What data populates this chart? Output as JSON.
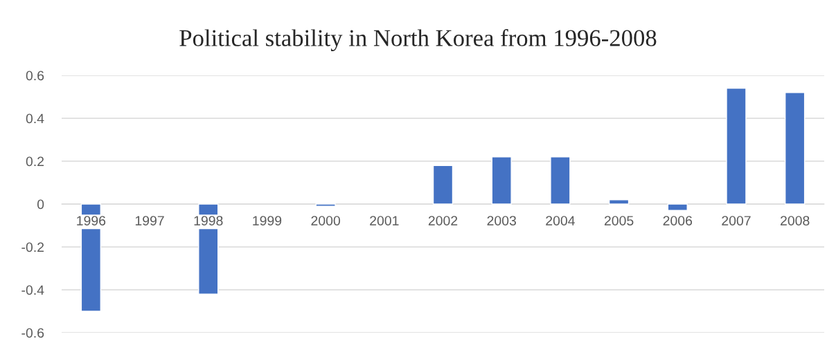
{
  "chart_data": {
    "type": "bar",
    "title": "Political stability in North Korea from 1996-2008",
    "categories": [
      "1996",
      "1997",
      "1998",
      "1999",
      "2000",
      "2001",
      "2002",
      "2003",
      "2004",
      "2005",
      "2006",
      "2007",
      "2008"
    ],
    "values": [
      -0.5,
      null,
      -0.42,
      null,
      -0.01,
      null,
      0.18,
      0.22,
      0.22,
      0.02,
      -0.03,
      0.54,
      0.52
    ],
    "color": "#4472c4",
    "ylim": [
      -0.6,
      0.6
    ],
    "yticks": [
      -0.6,
      -0.4,
      -0.2,
      0,
      0.2,
      0.4,
      0.6
    ],
    "grid": "y",
    "legend": false
  }
}
